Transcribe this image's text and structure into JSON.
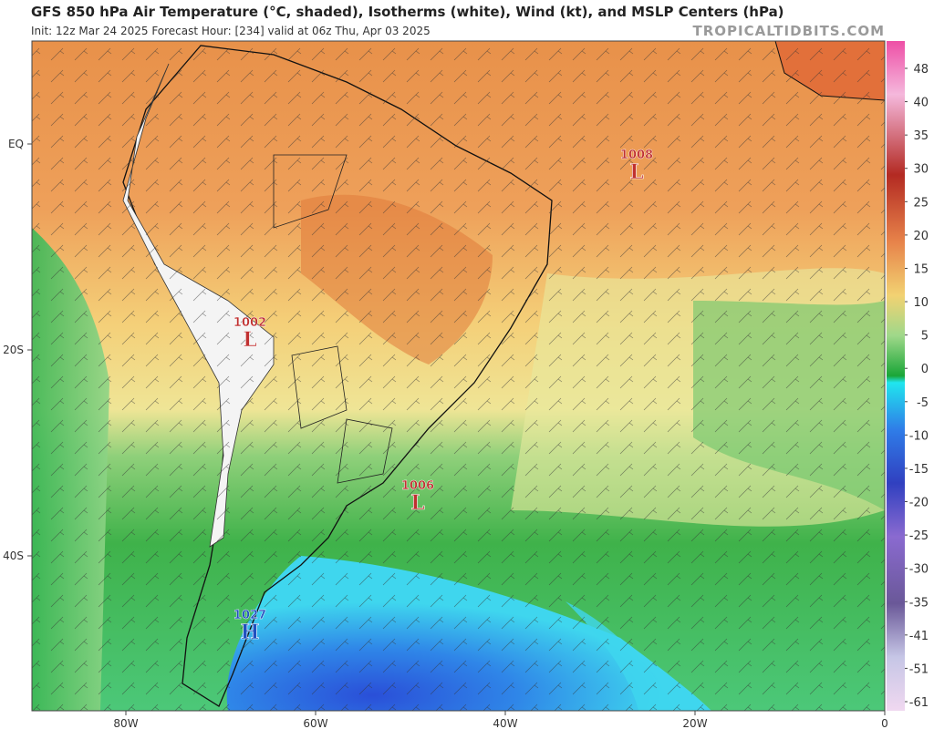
{
  "header": {
    "title": "GFS 850 hPa Air Temperature (°C, shaded), Isotherms (white), Wind (kt), and MSLP Centers (hPa)",
    "subtitle": "Init: 12z Mar 24 2025   Forecast Hour: [234]   valid at 06z Thu, Apr 03 2025",
    "watermark": "TROPICALTIDBITS.COM"
  },
  "map": {
    "lon_ticks": [
      {
        "value": -80,
        "label": "80W"
      },
      {
        "value": -60,
        "label": "60W"
      },
      {
        "value": -40,
        "label": "40W"
      },
      {
        "value": -20,
        "label": "20W"
      },
      0
    ],
    "lat_ticks": [
      {
        "value": 0,
        "label": "EQ"
      },
      {
        "value": -20,
        "label": "20S"
      },
      {
        "value": -40,
        "label": "40S"
      }
    ],
    "pressure_centers": [
      {
        "pressure": 1008,
        "letter": "L"
      },
      {
        "pressure": 1002,
        "letter": "L"
      },
      {
        "pressure": 1006,
        "letter": "L"
      },
      {
        "pressure": 1027,
        "letter": "H"
      }
    ]
  },
  "colorbar": {
    "ticks": [
      48,
      40,
      35,
      30,
      25,
      20,
      15,
      10,
      5,
      0,
      -5,
      -10,
      -15,
      -20,
      -25,
      -30,
      -35,
      -41,
      -51,
      -61
    ]
  }
}
